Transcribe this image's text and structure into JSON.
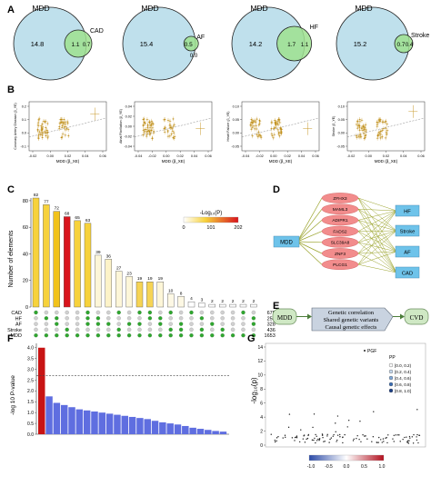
{
  "panels": {
    "A": {
      "label": "A",
      "venns": [
        {
          "left": "MDD",
          "right": "CAD",
          "only": "14.8",
          "shared": "1.1",
          "right_only": "0.7"
        },
        {
          "left": "MDD",
          "right": "AF",
          "only": "15.4",
          "shared": "0.5",
          "right_only": "0.0"
        },
        {
          "left": "MDD",
          "right": "HF",
          "only": "14.2",
          "shared": "1.7",
          "right_only": "1.1"
        },
        {
          "left": "MDD",
          "right": "Stroke",
          "only": "15.2",
          "shared": "0.7",
          "right_only": "0.4"
        }
      ]
    },
    "B": {
      "label": "B",
      "xlabel": "MDD (β_XE)",
      "plots": [
        {
          "ylabel": "Coronary Artery Disease (β_YE)",
          "xticks": [
            "-0.02",
            "0.00",
            "0.02",
            "0.04",
            "0.06"
          ],
          "yticks": [
            "0.2",
            "0.1",
            "0.0",
            "-0.1"
          ]
        },
        {
          "ylabel": "Atrial Fibrillation (β_YE)",
          "xticks": [
            "-0.04",
            "-0.02",
            "0.00",
            "0.02",
            "0.04",
            "0.06"
          ],
          "yticks": [
            "0.04",
            "0.02",
            "0.00",
            "-0.02",
            "-0.04"
          ]
        },
        {
          "ylabel": "Heart Failure (β_YE)",
          "xticks": [
            "-0.04",
            "-0.02",
            "0.00",
            "0.02",
            "0.04",
            "0.06"
          ],
          "yticks": [
            "0.10",
            "0.05",
            "0.00",
            "-0.05"
          ]
        },
        {
          "ylabel": "Stroke (β_YE)",
          "xticks": [
            "-0.02",
            "0.00",
            "0.02",
            "0.04",
            "0.06"
          ],
          "yticks": [
            "0.10",
            "0.05",
            "0.00",
            "-0.05"
          ]
        }
      ]
    },
    "C": {
      "label": "C",
      "ylabel": "Number of elements",
      "yticks": [
        "80",
        "60",
        "40",
        "20",
        "0"
      ],
      "legend_title": "-Log₁₀(P)",
      "legend_ticks": [
        "0",
        "101",
        "202"
      ],
      "bar_values": [
        82,
        77,
        72,
        68,
        65,
        63,
        39,
        36,
        27,
        23,
        19,
        19,
        19,
        10,
        8,
        4,
        3,
        2,
        2,
        2,
        2,
        2
      ],
      "bar_colors": [
        "#f7d23b",
        "#f7d23b",
        "#f1c21b",
        "#d9141c",
        "#f7d23b",
        "#f7d23b",
        "#fdf6d8",
        "#fdf3c8",
        "#fdf6d8",
        "#fdf6d8",
        "#f6d454",
        "#f6d454",
        "#fdf6d8",
        "#fdf8e4",
        "#fdf8e4",
        "#ffffff",
        "#ffffff",
        "#ffffff",
        "#ffffff",
        "#ffffff",
        "#ffffff",
        "#ffffff"
      ],
      "sets": [
        "CAD",
        "HF",
        "AF",
        "Stroke",
        "MDD"
      ],
      "set_sizes": [
        "675",
        "253",
        "328",
        "436",
        "1653"
      ]
    },
    "D": {
      "label": "D",
      "left": "MDD",
      "genes": [
        "ZFHX3",
        "MAML3",
        "ADIPR1",
        "FADS2",
        "SLC39A8",
        "ZNF3",
        "PLCG1"
      ],
      "targets": [
        "HF",
        "Stroke",
        "AF",
        "CAD"
      ]
    },
    "E": {
      "label": "E",
      "left": "MDD",
      "right": "CVD",
      "lines": [
        "Genetic correlation",
        "Shared genetic variants",
        "Causal genetic effects"
      ]
    },
    "F": {
      "label": "F",
      "ylabel": "-log 10 P-value",
      "yticks": [
        "4.0",
        "3.5",
        "3.0",
        "2.5",
        "2.0",
        "1.5",
        "1.0",
        "0.5",
        "0.0"
      ],
      "ylim": [
        0,
        4.2
      ],
      "threshold": 2.7,
      "values": [
        4.0,
        1.75,
        1.45,
        1.35,
        1.25,
        1.15,
        1.1,
        1.05,
        1.0,
        0.95,
        0.9,
        0.85,
        0.8,
        0.75,
        0.7,
        0.62,
        0.55,
        0.5,
        0.45,
        0.38,
        0.3,
        0.25,
        0.2,
        0.15,
        0.12
      ],
      "colors": {
        "top": "#c81414",
        "rest": "#5f6ee0"
      }
    },
    "G": {
      "label": "G",
      "ylabel": "-log₁₀(p)",
      "yticks": [
        "14",
        "12",
        "10",
        "8",
        "6",
        "4",
        "2",
        "0"
      ],
      "legend_gene": "PGF",
      "legend_title": "PP",
      "legend_items": [
        "[0.0, 0.2)",
        "[0.2, 0.4)",
        "[0.4, 0.6)",
        "[0.6, 0.8)",
        "[0.8, 1.0]"
      ],
      "legend_colors": [
        "#ffffff",
        "#c6d9ee",
        "#7fa8d8",
        "#3a6db5",
        "#1a3d85"
      ],
      "colorbar_ticks": [
        "-1.0",
        "-0.5",
        "0.0",
        "0.5",
        "1.0"
      ]
    }
  }
}
